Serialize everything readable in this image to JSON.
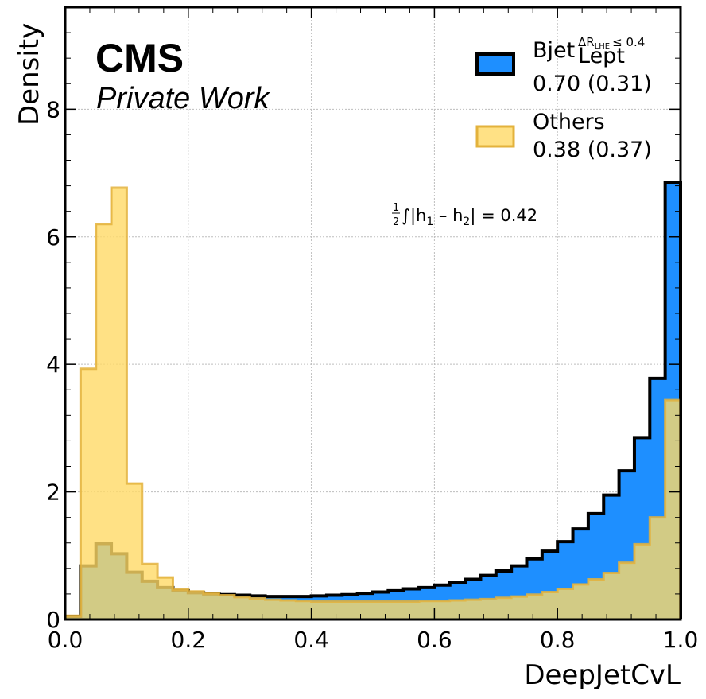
{
  "chart_data": {
    "type": "histogram",
    "title": "",
    "xlabel": "DeepJetCvL",
    "ylabel": "Density",
    "xlim": [
      0.0,
      1.0
    ],
    "ylim": [
      0,
      9.6
    ],
    "x_ticks": [
      "0.0",
      "0.2",
      "0.4",
      "0.6",
      "0.8",
      "1.0"
    ],
    "y_ticks": [
      "0",
      "2",
      "4",
      "6",
      "8"
    ],
    "grid": true,
    "legend_position": "top-right",
    "bin_edges": [
      0.0,
      0.025,
      0.05,
      0.075,
      0.1,
      0.125,
      0.15,
      0.175,
      0.2,
      0.225,
      0.25,
      0.275,
      0.3,
      0.325,
      0.35,
      0.375,
      0.4,
      0.425,
      0.45,
      0.475,
      0.5,
      0.525,
      0.55,
      0.575,
      0.6,
      0.625,
      0.65,
      0.675,
      0.7,
      0.725,
      0.75,
      0.775,
      0.8,
      0.825,
      0.85,
      0.875,
      0.9,
      0.925,
      0.95,
      0.975,
      1.0
    ],
    "series": [
      {
        "name_main": "Bjet",
        "name_sup": "ΔR",
        "name_sup_sub": "LHE",
        "name_sup_cond": "≤ 0.4",
        "name_sub": "Lept",
        "legend_value": "0.70 (0.31)",
        "fill": "#1e8fff",
        "edge": "#000000",
        "values": [
          0.05,
          0.84,
          1.19,
          1.03,
          0.74,
          0.6,
          0.5,
          0.45,
          0.42,
          0.4,
          0.39,
          0.38,
          0.37,
          0.36,
          0.36,
          0.36,
          0.37,
          0.38,
          0.39,
          0.41,
          0.43,
          0.45,
          0.48,
          0.5,
          0.54,
          0.58,
          0.63,
          0.69,
          0.76,
          0.84,
          0.95,
          1.07,
          1.22,
          1.42,
          1.66,
          1.95,
          2.33,
          2.85,
          3.78,
          6.85
        ]
      },
      {
        "name": "Others",
        "legend_value": "0.38 (0.37)",
        "fill": "#ffd966",
        "fill_opacity": 0.8,
        "edge": "#e3b23c",
        "values": [
          0.06,
          3.93,
          6.2,
          6.77,
          2.13,
          0.87,
          0.66,
          0.47,
          0.44,
          0.41,
          0.38,
          0.35,
          0.33,
          0.31,
          0.3,
          0.29,
          0.28,
          0.28,
          0.28,
          0.28,
          0.28,
          0.28,
          0.28,
          0.29,
          0.29,
          0.3,
          0.31,
          0.32,
          0.34,
          0.36,
          0.39,
          0.43,
          0.48,
          0.55,
          0.63,
          0.73,
          0.89,
          1.18,
          1.6,
          3.44
        ]
      }
    ],
    "annotation_frac_num": "1",
    "annotation_frac_den": "2",
    "annotation_text": "∫|h",
    "annotation_sub1": "1",
    "annotation_mid": " – h",
    "annotation_sub2": "2",
    "annotation_tail": "| = 0.42"
  },
  "labels": {
    "experiment": "CMS",
    "status": "Private Work"
  }
}
